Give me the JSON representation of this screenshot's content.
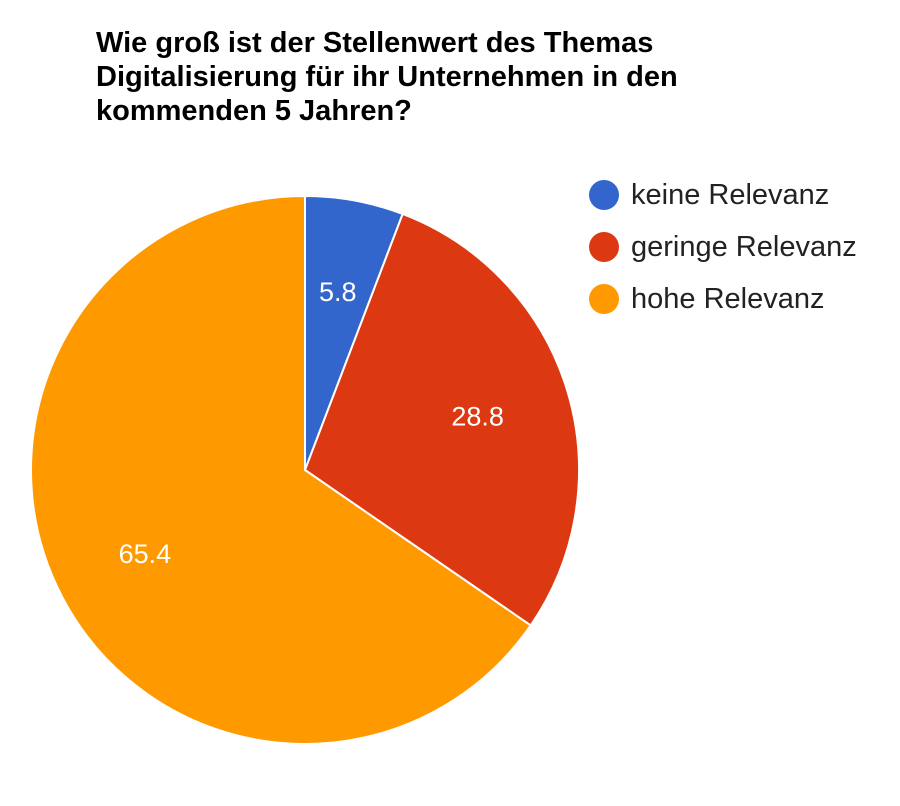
{
  "chart_data": {
    "type": "pie",
    "title": "Wie groß ist der Stellenwert des Themas Digitalisierung für ihr Unternehmen in den kommenden 5 Jahren?",
    "categories": [
      "keine Relevanz",
      "geringe Relevanz",
      "hohe Relevanz"
    ],
    "values": [
      5.8,
      28.8,
      65.4
    ],
    "value_labels": [
      "5.8",
      "28.8",
      "65.4"
    ],
    "colors": [
      "#3366cc",
      "#dc3912",
      "#ff9900"
    ],
    "legend_position": "right"
  }
}
